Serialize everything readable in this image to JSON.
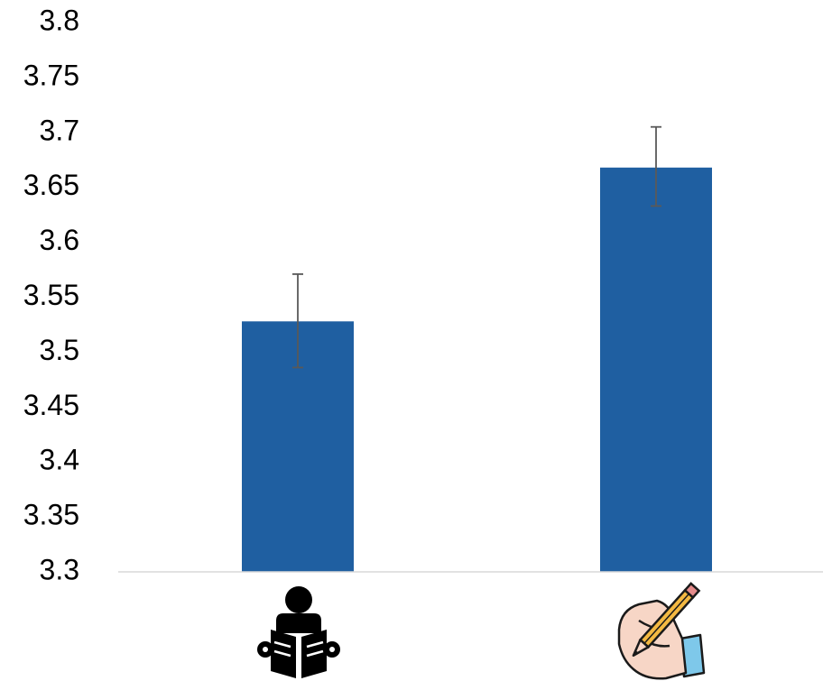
{
  "chart_data": {
    "type": "bar",
    "categories": [
      "reading",
      "writing"
    ],
    "category_icons": [
      "reading-person-icon",
      "writing-hand-icon"
    ],
    "values": [
      3.528,
      3.668
    ],
    "error_bars": {
      "plus": [
        0.043,
        0.037
      ],
      "minus": [
        0.042,
        0.035
      ]
    },
    "ylim": [
      3.3,
      3.8
    ],
    "y_ticks": [
      "3.3",
      "3.35",
      "3.4",
      "3.45",
      "3.5",
      "3.55",
      "3.6",
      "3.65",
      "3.7",
      "3.75",
      "3.8"
    ],
    "title": "",
    "xlabel": "",
    "ylabel": "",
    "grid": false,
    "legend": "none",
    "colors": {
      "bar": "#1f5fa1",
      "error_bar": "#595959",
      "axis": "#d9d9d9",
      "icon_dark": "#000000",
      "skin": "#f7d6c6",
      "sleeve": "#7ec8ea",
      "pencil": "#f4b942"
    }
  }
}
